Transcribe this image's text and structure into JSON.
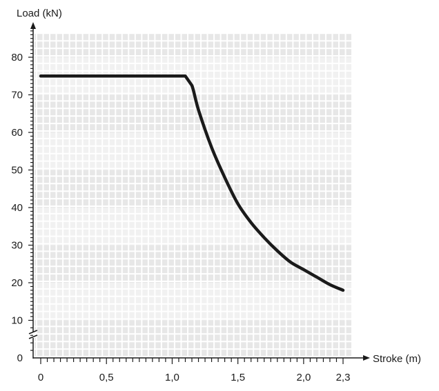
{
  "chart_data": {
    "type": "line",
    "xlabel": "Stroke (m)",
    "ylabel": "Load (kN)",
    "xlim": [
      0,
      2.3
    ],
    "ylim": [
      0,
      88
    ],
    "x_ticks": [
      {
        "value": 0,
        "label": "0"
      },
      {
        "value": 0.5,
        "label": "0,5"
      },
      {
        "value": 1.0,
        "label": "1,0"
      },
      {
        "value": 1.5,
        "label": "1,5"
      },
      {
        "value": 2.0,
        "label": "2,0"
      },
      {
        "value": 2.3,
        "label": "2,3"
      }
    ],
    "y_ticks": [
      {
        "value": 0,
        "label": "0"
      },
      {
        "value": 10,
        "label": "10"
      },
      {
        "value": 20,
        "label": "20"
      },
      {
        "value": 30,
        "label": "30"
      },
      {
        "value": 40,
        "label": "40"
      },
      {
        "value": 50,
        "label": "50"
      },
      {
        "value": 60,
        "label": "60"
      },
      {
        "value": 70,
        "label": "70"
      },
      {
        "value": 80,
        "label": "80"
      }
    ],
    "y_axis_break": true,
    "grid": true,
    "series": [
      {
        "color": "#1a1a1a",
        "x": [
          0.0,
          0.5,
          1.1,
          1.15,
          1.2,
          1.3,
          1.4,
          1.5,
          1.6,
          1.7,
          1.8,
          1.9,
          2.0,
          2.1,
          2.2,
          2.3
        ],
        "y": [
          75,
          75,
          75,
          72.5,
          66,
          56,
          48,
          41,
          36,
          32,
          28.5,
          25.5,
          23.5,
          21.5,
          19.5,
          18
        ]
      }
    ]
  }
}
